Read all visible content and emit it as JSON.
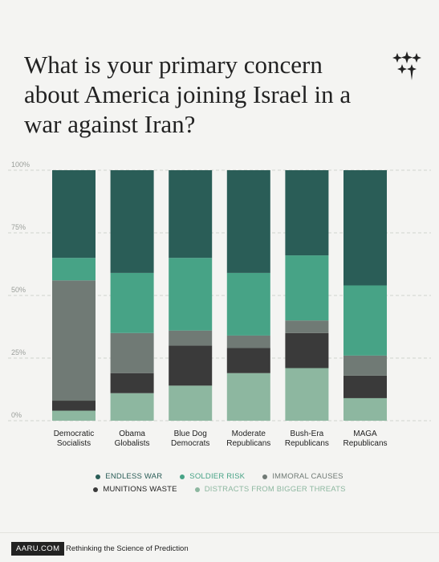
{
  "title": "What is your primary concern about America joining Israel in a war against Iran?",
  "legend": {
    "items": [
      {
        "label": "ENDLESS WAR",
        "color": "#2a5d57"
      },
      {
        "label": "SOLDIER RISK",
        "color": "#47a386"
      },
      {
        "label": "IMMORAL CAUSES",
        "color": "#707a75"
      },
      {
        "label": "MUNITIONS WASTE",
        "color": "#3a3a3a"
      },
      {
        "label": "DISTRACTS FROM BIGGER THREATS",
        "color": "#8db7a0"
      }
    ]
  },
  "footer": {
    "brand": "AARU.COM",
    "tagline": "Rethinking the Science of Prediction"
  },
  "chart_data": {
    "type": "bar",
    "stacked": true,
    "categories": [
      "Democratic\nSocialists",
      "Obama\nGlobalists",
      "Blue Dog\nDemocrats",
      "Moderate\nRepublicans",
      "Bush-Era\nRepublicans",
      "MAGA\nRepublicans"
    ],
    "y_ticks": [
      "0%",
      "25%",
      "50%",
      "75%",
      "100%"
    ],
    "ylim": [
      0,
      100
    ],
    "series": [
      {
        "name": "DISTRACTS FROM BIGGER THREATS",
        "color": "#8db7a0",
        "values": [
          4,
          11,
          14,
          19,
          21,
          9
        ]
      },
      {
        "name": "MUNITIONS WASTE",
        "color": "#3a3a3a",
        "values": [
          4,
          8,
          16,
          10,
          14,
          9
        ]
      },
      {
        "name": "IMMORAL CAUSES",
        "color": "#707a75",
        "values": [
          48,
          16,
          6,
          5,
          5,
          8
        ]
      },
      {
        "name": "SOLDIER RISK",
        "color": "#47a386",
        "values": [
          9,
          24,
          29,
          25,
          26,
          28
        ]
      },
      {
        "name": "ENDLESS WAR",
        "color": "#2a5d57",
        "values": [
          35,
          41,
          35,
          41,
          34,
          46
        ]
      }
    ],
    "grid": true,
    "legend_position": "bottom"
  }
}
